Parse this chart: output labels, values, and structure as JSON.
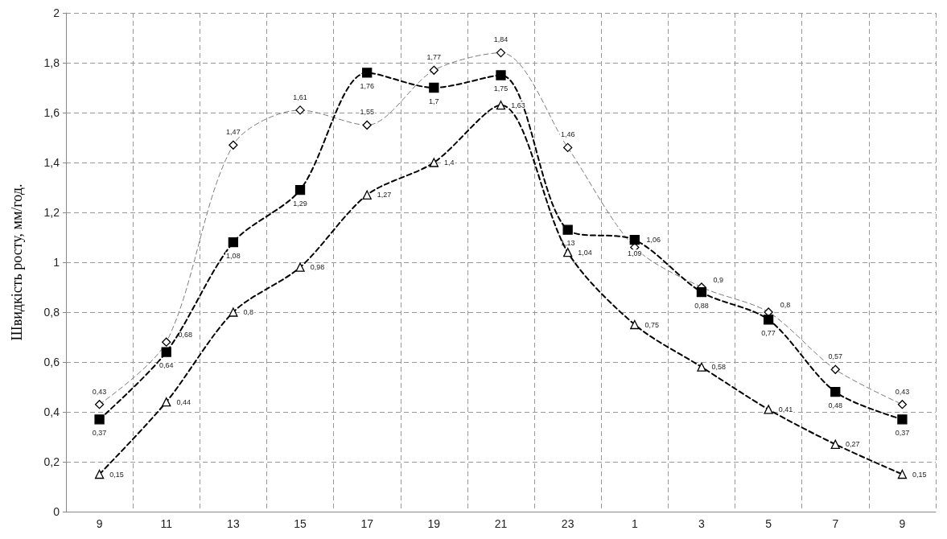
{
  "chart_data": {
    "type": "line",
    "ylabel": "Швидкість росту, мм/год.",
    "categories": [
      "9",
      "11",
      "13",
      "15",
      "17",
      "19",
      "21",
      "23",
      "1",
      "3",
      "5",
      "7",
      "9"
    ],
    "ylim": [
      0,
      2
    ],
    "yticks": [
      0,
      {
        "value": 0.2,
        "label": "0,2"
      },
      {
        "value": 0.4,
        "label": "0,4"
      },
      {
        "value": 0.6,
        "label": "0,6"
      },
      {
        "value": 0.8,
        "label": "0,8"
      },
      1,
      {
        "value": 1.2,
        "label": "1,2"
      },
      {
        "value": 1.4,
        "label": "1,4"
      },
      {
        "value": 1.6,
        "label": "1,6"
      },
      {
        "value": 1.8,
        "label": "1,8"
      },
      2
    ],
    "grid": true,
    "line_style": "dashed",
    "series": [
      {
        "color": "#7a7a7a",
        "marker": "diamond",
        "values": [
          0.43,
          0.68,
          1.47,
          1.61,
          1.55,
          1.77,
          1.84,
          1.46,
          1.06,
          0.9,
          0.8,
          0.57,
          0.43
        ],
        "value_labels": [
          "0,43",
          "0,68",
          "1,47",
          "1,61",
          "1,55",
          "1,77",
          "1,84",
          "1,46",
          "1,06",
          "0,9",
          "0,8",
          "0,57",
          "0,43"
        ]
      },
      {
        "color": "#000000",
        "marker": "square",
        "values": [
          0.37,
          0.64,
          1.08,
          1.29,
          1.76,
          1.7,
          1.75,
          1.13,
          1.09,
          0.88,
          0.77,
          0.48,
          0.37
        ],
        "value_labels": [
          "0,37",
          "0,64",
          "1,08",
          "1,29",
          "1,76",
          "1,7",
          "1,75",
          "1,13",
          "1,09",
          "0,88",
          "0,77",
          "0,48",
          "0,37"
        ]
      },
      {
        "color": "#000000",
        "marker": "triangle",
        "values": [
          0.15,
          0.44,
          0.8,
          0.98,
          1.27,
          1.4,
          1.63,
          1.04,
          0.75,
          0.58,
          0.41,
          0.27,
          0.15
        ],
        "value_labels": [
          "0,15",
          "0,44",
          "0,8",
          "0,98",
          "1,27",
          "1,4",
          "1,63",
          "1,04",
          "0,75",
          "0,58",
          "0,41",
          "0,27",
          "0,15"
        ]
      }
    ]
  }
}
